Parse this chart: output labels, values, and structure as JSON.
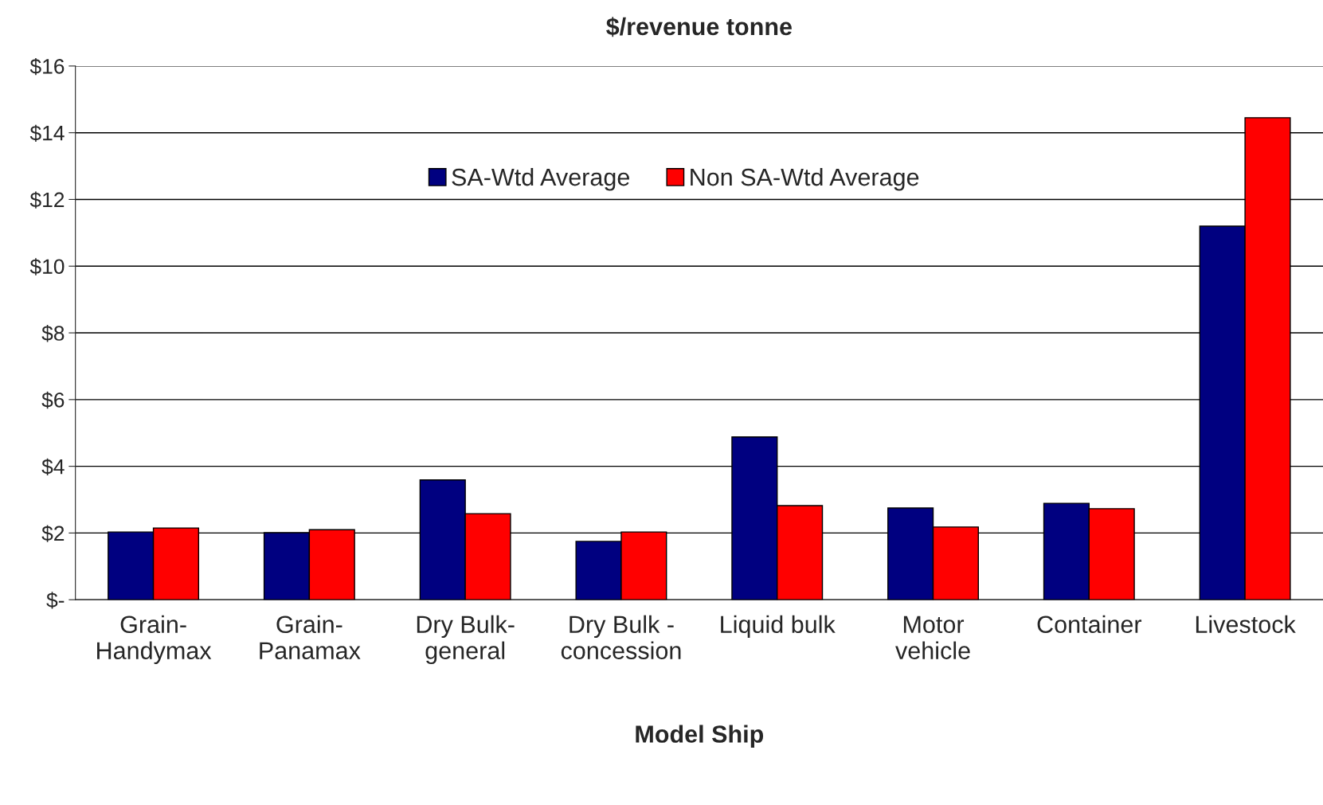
{
  "chart_data": {
    "type": "bar",
    "title": "$/revenue tonne",
    "xlabel": "Model Ship",
    "categories": [
      "Grain-\nHandymax",
      "Grain-\nPanamax",
      "Dry Bulk-\ngeneral",
      "Dry Bulk -\nconcession",
      "Liquid bulk",
      "Motor\nvehicle",
      "Container",
      "Livestock"
    ],
    "series": [
      {
        "name": "SA-Wtd Average",
        "color": "#000080",
        "values": [
          2.03,
          2.01,
          3.59,
          1.75,
          4.88,
          2.75,
          2.89,
          11.2
        ]
      },
      {
        "name": "Non SA-Wtd Average",
        "color": "#ff0000",
        "values": [
          2.15,
          2.1,
          2.58,
          2.03,
          2.82,
          2.18,
          2.73,
          14.45
        ]
      }
    ],
    "ylim": [
      0,
      16
    ],
    "yticks": [
      {
        "value": 0,
        "label": "$-"
      },
      {
        "value": 2,
        "label": "$2"
      },
      {
        "value": 4,
        "label": "$4"
      },
      {
        "value": 6,
        "label": "$6"
      },
      {
        "value": 8,
        "label": "$8"
      },
      {
        "value": 10,
        "label": "$10"
      },
      {
        "value": 12,
        "label": "$12"
      },
      {
        "value": 14,
        "label": "$14"
      },
      {
        "value": 16,
        "label": "$16"
      }
    ],
    "grid": "y",
    "legend": "top"
  }
}
